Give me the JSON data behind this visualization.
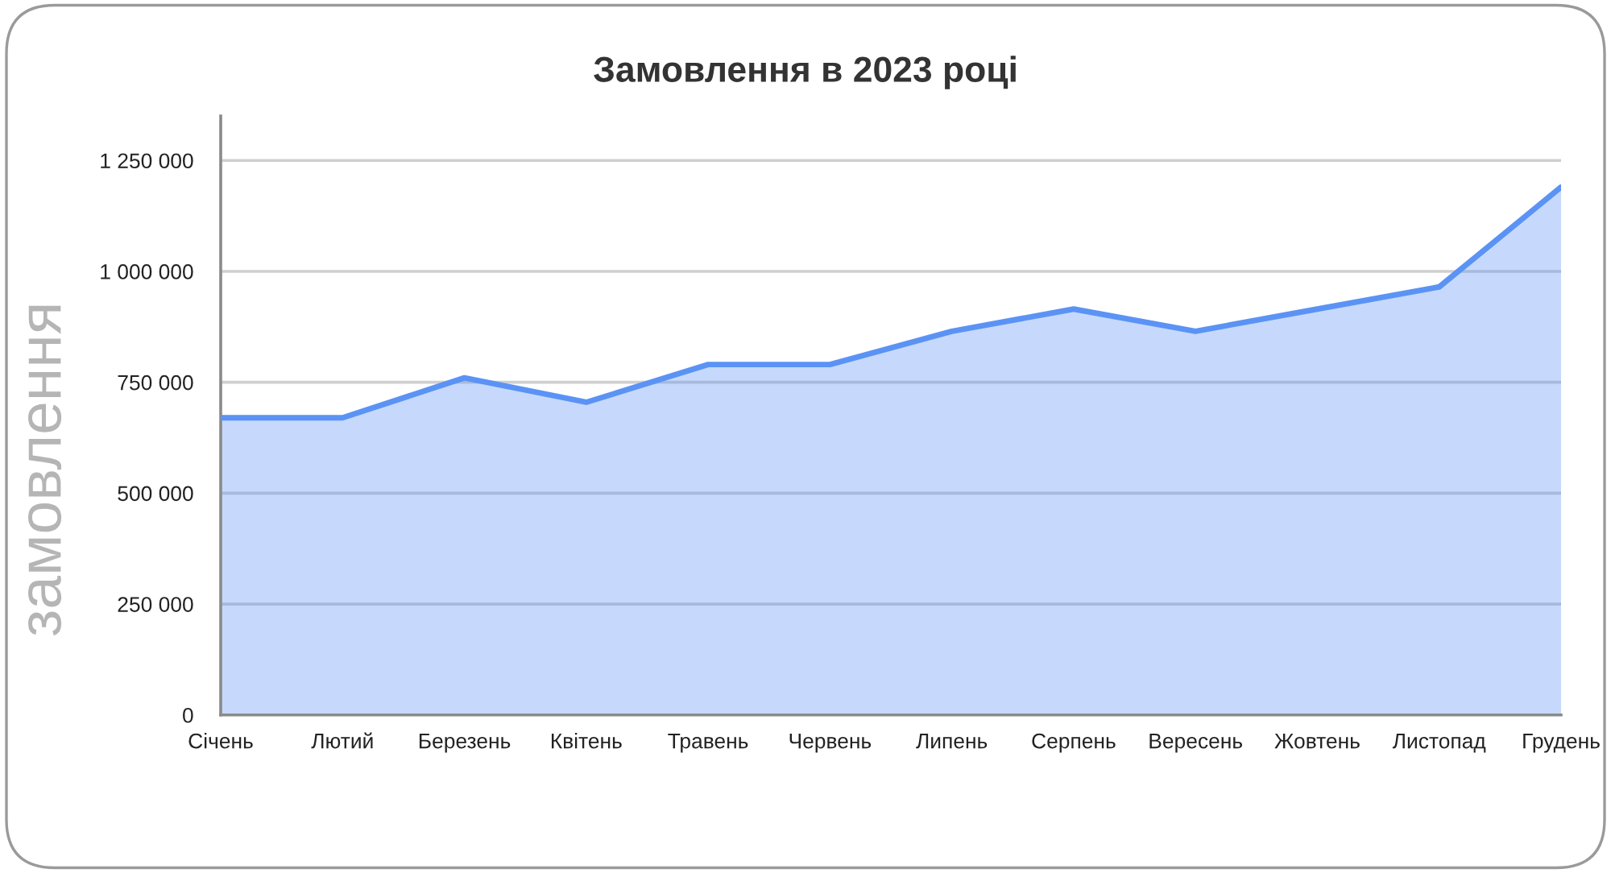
{
  "chart_data": {
    "type": "area",
    "title": "Замовлення в 2023 році",
    "ylabel": "замовлення",
    "categories": [
      "Січень",
      "Лютий",
      "Березень",
      "Квітень",
      "Травень",
      "Червень",
      "Липень",
      "Серпень",
      "Вересень",
      "Жовтень",
      "Листопад",
      "Грудень"
    ],
    "series": [
      {
        "color": "#5b93f5",
        "values": [
          670000,
          670000,
          760000,
          705000,
          790000,
          790000,
          865000,
          915000,
          865000,
          915000,
          965000,
          1190000
        ]
      }
    ],
    "ylim": [
      0,
      1350000
    ],
    "yticks": [
      0,
      {
        "value": 250000,
        "label": "250 000"
      },
      {
        "value": 500000,
        "label": "500 000"
      },
      {
        "value": 750000,
        "label": "750 000"
      },
      {
        "value": 1000000,
        "label": "1 000 000"
      },
      {
        "value": 1250000,
        "label": "1 250 000"
      }
    ],
    "grid": "y"
  }
}
